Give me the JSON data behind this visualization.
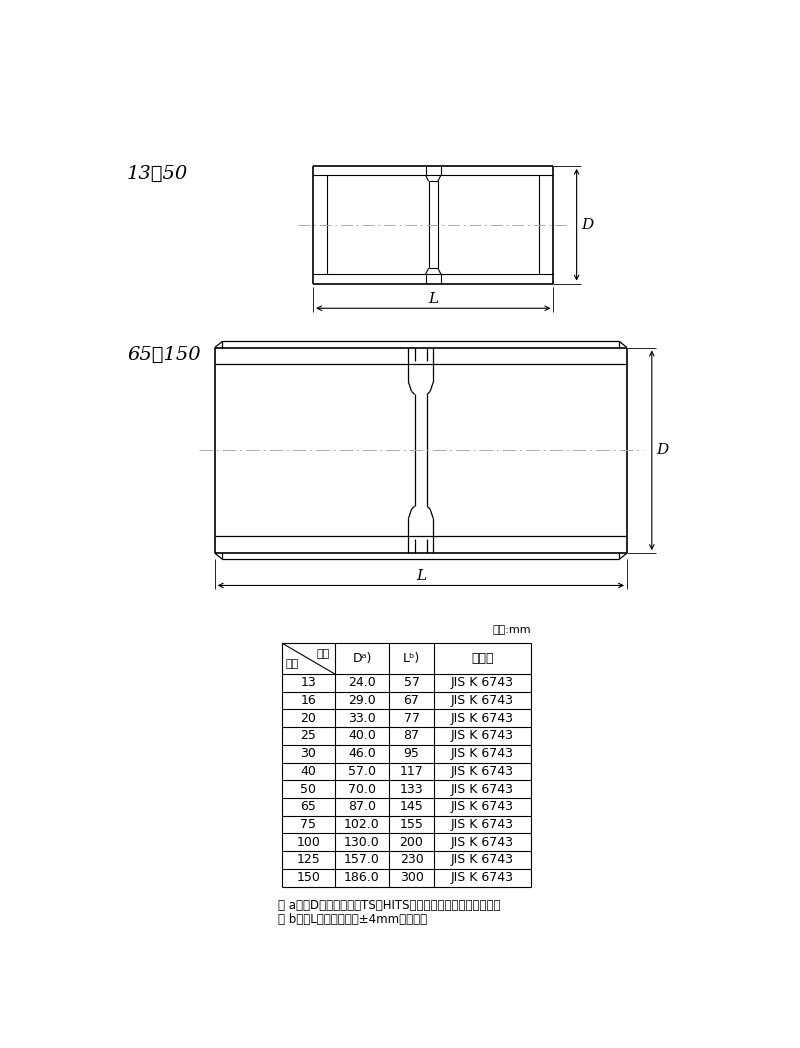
{
  "bg_color": "#ffffff",
  "line_color": "#000000",
  "label_small": "13～50",
  "label_large": "65～150",
  "unit_label": "単位:mm",
  "header_top": "記号",
  "header_bottom": "呈径",
  "col_D": "Dᵃ)",
  "col_L": "Lᵇ)",
  "col_spec": "規　格",
  "rows": [
    [
      "13",
      "24.0",
      "57",
      "JIS K 6743"
    ],
    [
      "16",
      "29.0",
      "67",
      "JIS K 6743"
    ],
    [
      "20",
      "33.0",
      "77",
      "JIS K 6743"
    ],
    [
      "25",
      "40.0",
      "87",
      "JIS K 6743"
    ],
    [
      "30",
      "46.0",
      "95",
      "JIS K 6743"
    ],
    [
      "40",
      "57.0",
      "117",
      "JIS K 6743"
    ],
    [
      "50",
      "70.0",
      "133",
      "JIS K 6743"
    ],
    [
      "65",
      "87.0",
      "145",
      "JIS K 6743"
    ],
    [
      "75",
      "102.0",
      "155",
      "JIS K 6743"
    ],
    [
      "100",
      "130.0",
      "200",
      "JIS K 6743"
    ],
    [
      "125",
      "157.0",
      "230",
      "JIS K 6743"
    ],
    [
      "150",
      "186.0",
      "300",
      "JIS K 6743"
    ]
  ],
  "note_a": "注 a）　Dの許容差は、TS・HITS継手受口共通寸法図による。",
  "note_b": "注 b）　Lの許容差は、±4mmとする。"
}
